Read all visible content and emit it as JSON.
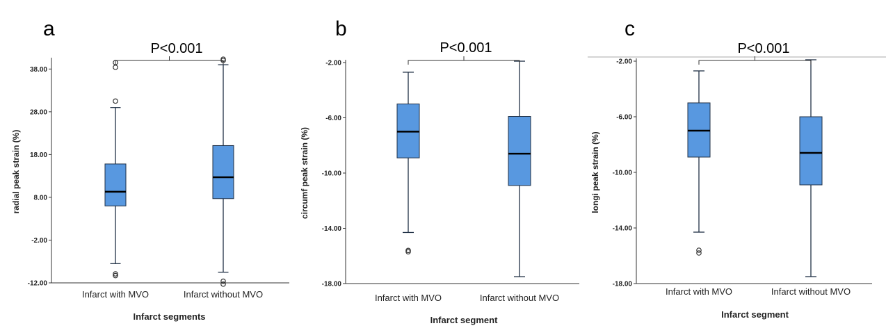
{
  "colors": {
    "box_fill": "#5898e0",
    "box_stroke": "#1f2f44",
    "axis": "#333333",
    "median": "#000000",
    "outlier": "#333333",
    "frame_line": "#aaaaaa"
  },
  "chart_data": [
    {
      "type": "box",
      "panel_label": "a",
      "significance": "P<0.001",
      "xlabel": "Infarct segments",
      "ylabel": "radial peak strain (%)",
      "ylim": [
        -12,
        40
      ],
      "yticks": [
        -12,
        -2,
        8,
        18,
        28,
        38
      ],
      "ytick_labels": [
        "-12.00",
        "-2.00",
        "8.00",
        "18.00",
        "28.00",
        "38.00"
      ],
      "categories": [
        "Infarct with MVO",
        "Infarct without MVO"
      ],
      "boxes": [
        {
          "whisker_low": -7.5,
          "q1": 6.0,
          "median": 9.3,
          "q3": 15.8,
          "whisker_high": 29.0,
          "outliers": [
            -9.9,
            -10.3,
            30.5,
            38.4,
            39.5
          ]
        },
        {
          "whisker_low": -9.5,
          "q1": 7.7,
          "median": 12.7,
          "q3": 20.1,
          "whisker_high": 39.0,
          "outliers": [
            -11.6,
            -12.3,
            40.0,
            40.3
          ]
        }
      ]
    },
    {
      "type": "box",
      "panel_label": "b",
      "significance": "P<0.001",
      "xlabel": "Infarct segment",
      "ylabel": "circumf peak strain (%)",
      "ylim": [
        -18,
        -2
      ],
      "yticks": [
        -18,
        -14,
        -10,
        -6,
        -2
      ],
      "ytick_labels": [
        "-18.00",
        "-14.00",
        "-10.00",
        "-6.00",
        "-2.00"
      ],
      "categories": [
        "Infarct with MVO",
        "Infarct without MVO"
      ],
      "boxes": [
        {
          "whisker_low": -14.3,
          "q1": -8.9,
          "median": -7.0,
          "q3": -5.0,
          "whisker_high": -2.7,
          "outliers": [
            -15.6,
            -15.7
          ]
        },
        {
          "whisker_low": -17.5,
          "q1": -10.9,
          "median": -8.6,
          "q3": -5.9,
          "whisker_high": -1.9,
          "outliers": []
        }
      ]
    },
    {
      "type": "box",
      "panel_label": "c",
      "significance": "P<0.001",
      "xlabel": "Infarct segment",
      "ylabel": "longi peak strain (%)",
      "ylim": [
        -18,
        -2
      ],
      "yticks": [
        -18,
        -14,
        -10,
        -6,
        -2
      ],
      "ytick_labels": [
        "-18.00",
        "-14.00",
        "-10.00",
        "-6.00",
        "-2.00"
      ],
      "categories": [
        "Infarct with MVO",
        "Infarct without MVO"
      ],
      "boxes": [
        {
          "whisker_low": -14.3,
          "q1": -8.9,
          "median": -7.0,
          "q3": -5.0,
          "whisker_high": -2.7,
          "outliers": [
            -15.6,
            -15.8
          ]
        },
        {
          "whisker_low": -17.5,
          "q1": -10.9,
          "median": -8.6,
          "q3": -6.0,
          "whisker_high": -1.9,
          "outliers": []
        }
      ]
    }
  ]
}
